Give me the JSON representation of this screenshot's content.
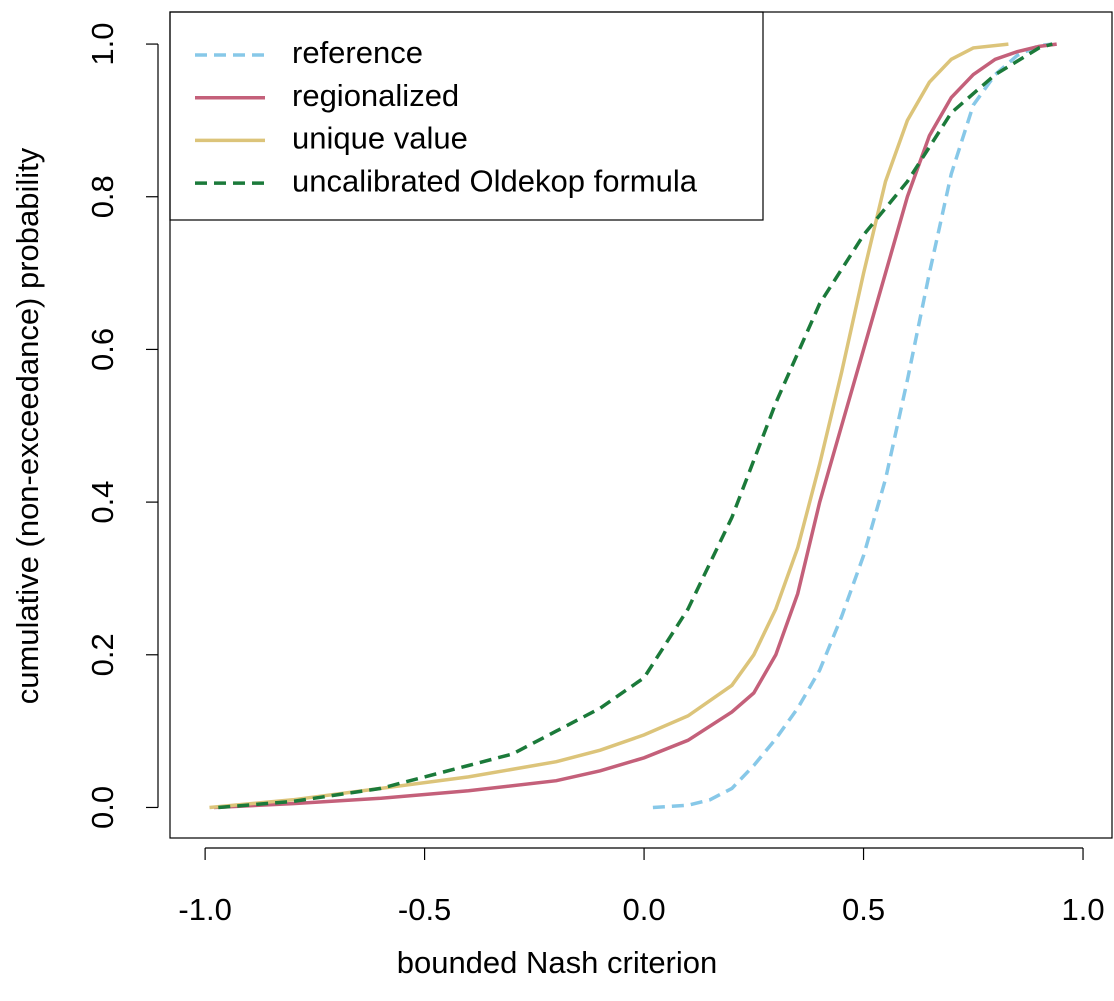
{
  "chart_data": {
    "type": "line",
    "xlabel": "bounded Nash criterion",
    "ylabel": "cumulative (non-exceedance) probability",
    "xlim": [
      -1.08,
      1.066
    ],
    "ylim": [
      -0.04,
      1.042
    ],
    "xticks": [
      {
        "value": -1,
        "label": "-1.0"
      },
      {
        "value": -0.5,
        "label": "-0.5"
      },
      {
        "value": 0,
        "label": "0.0"
      },
      {
        "value": 0.5,
        "label": "0.5"
      },
      {
        "value": 1,
        "label": "1.0"
      }
    ],
    "yticks": [
      {
        "value": 0,
        "label": "0.0"
      },
      {
        "value": 0.2,
        "label": "0.2"
      },
      {
        "value": 0.4,
        "label": "0.4"
      },
      {
        "value": 0.6,
        "label": "0.6"
      },
      {
        "value": 0.8,
        "label": "0.8"
      },
      {
        "value": 1,
        "label": "1.0"
      }
    ],
    "legend": "top-left",
    "series": [
      {
        "name": "reference",
        "color": "#87c8e8",
        "dashed": true,
        "x": [
          0.02,
          0.1,
          0.15,
          0.2,
          0.25,
          0.3,
          0.35,
          0.4,
          0.45,
          0.5,
          0.55,
          0.6,
          0.65,
          0.7,
          0.75,
          0.8,
          0.85,
          0.9,
          0.93
        ],
        "values": [
          0,
          0.003,
          0.01,
          0.025,
          0.055,
          0.09,
          0.13,
          0.18,
          0.25,
          0.33,
          0.43,
          0.56,
          0.7,
          0.83,
          0.92,
          0.96,
          0.985,
          0.998,
          1.0
        ]
      },
      {
        "name": "regionalized",
        "color": "#c4607a",
        "dashed": false,
        "x": [
          -0.98,
          -0.8,
          -0.6,
          -0.4,
          -0.2,
          -0.1,
          0,
          0.1,
          0.2,
          0.25,
          0.3,
          0.35,
          0.4,
          0.45,
          0.5,
          0.55,
          0.6,
          0.65,
          0.7,
          0.75,
          0.8,
          0.85,
          0.9,
          0.94
        ],
        "values": [
          0,
          0.005,
          0.012,
          0.022,
          0.035,
          0.048,
          0.065,
          0.088,
          0.125,
          0.15,
          0.2,
          0.28,
          0.4,
          0.5,
          0.6,
          0.7,
          0.8,
          0.88,
          0.93,
          0.96,
          0.98,
          0.99,
          0.997,
          1.0
        ]
      },
      {
        "name": "unique value",
        "color": "#dcc47a",
        "dashed": false,
        "x": [
          -0.99,
          -0.8,
          -0.6,
          -0.4,
          -0.2,
          -0.1,
          0,
          0.1,
          0.2,
          0.25,
          0.3,
          0.35,
          0.4,
          0.45,
          0.5,
          0.55,
          0.6,
          0.65,
          0.7,
          0.75,
          0.83
        ],
        "values": [
          0,
          0.01,
          0.025,
          0.04,
          0.06,
          0.075,
          0.095,
          0.12,
          0.16,
          0.2,
          0.26,
          0.34,
          0.45,
          0.57,
          0.7,
          0.82,
          0.9,
          0.95,
          0.98,
          0.995,
          1.0
        ]
      },
      {
        "name": "uncalibrated Oldekop formula",
        "color": "#1b7a3a",
        "dashed": true,
        "x": [
          -0.97,
          -0.8,
          -0.6,
          -0.5,
          -0.4,
          -0.3,
          -0.2,
          -0.1,
          0,
          0.1,
          0.2,
          0.3,
          0.4,
          0.5,
          0.6,
          0.7,
          0.8,
          0.9,
          0.93
        ],
        "values": [
          0,
          0.008,
          0.025,
          0.04,
          0.055,
          0.07,
          0.1,
          0.13,
          0.17,
          0.26,
          0.38,
          0.53,
          0.66,
          0.75,
          0.82,
          0.91,
          0.96,
          0.995,
          1.0
        ]
      }
    ]
  }
}
